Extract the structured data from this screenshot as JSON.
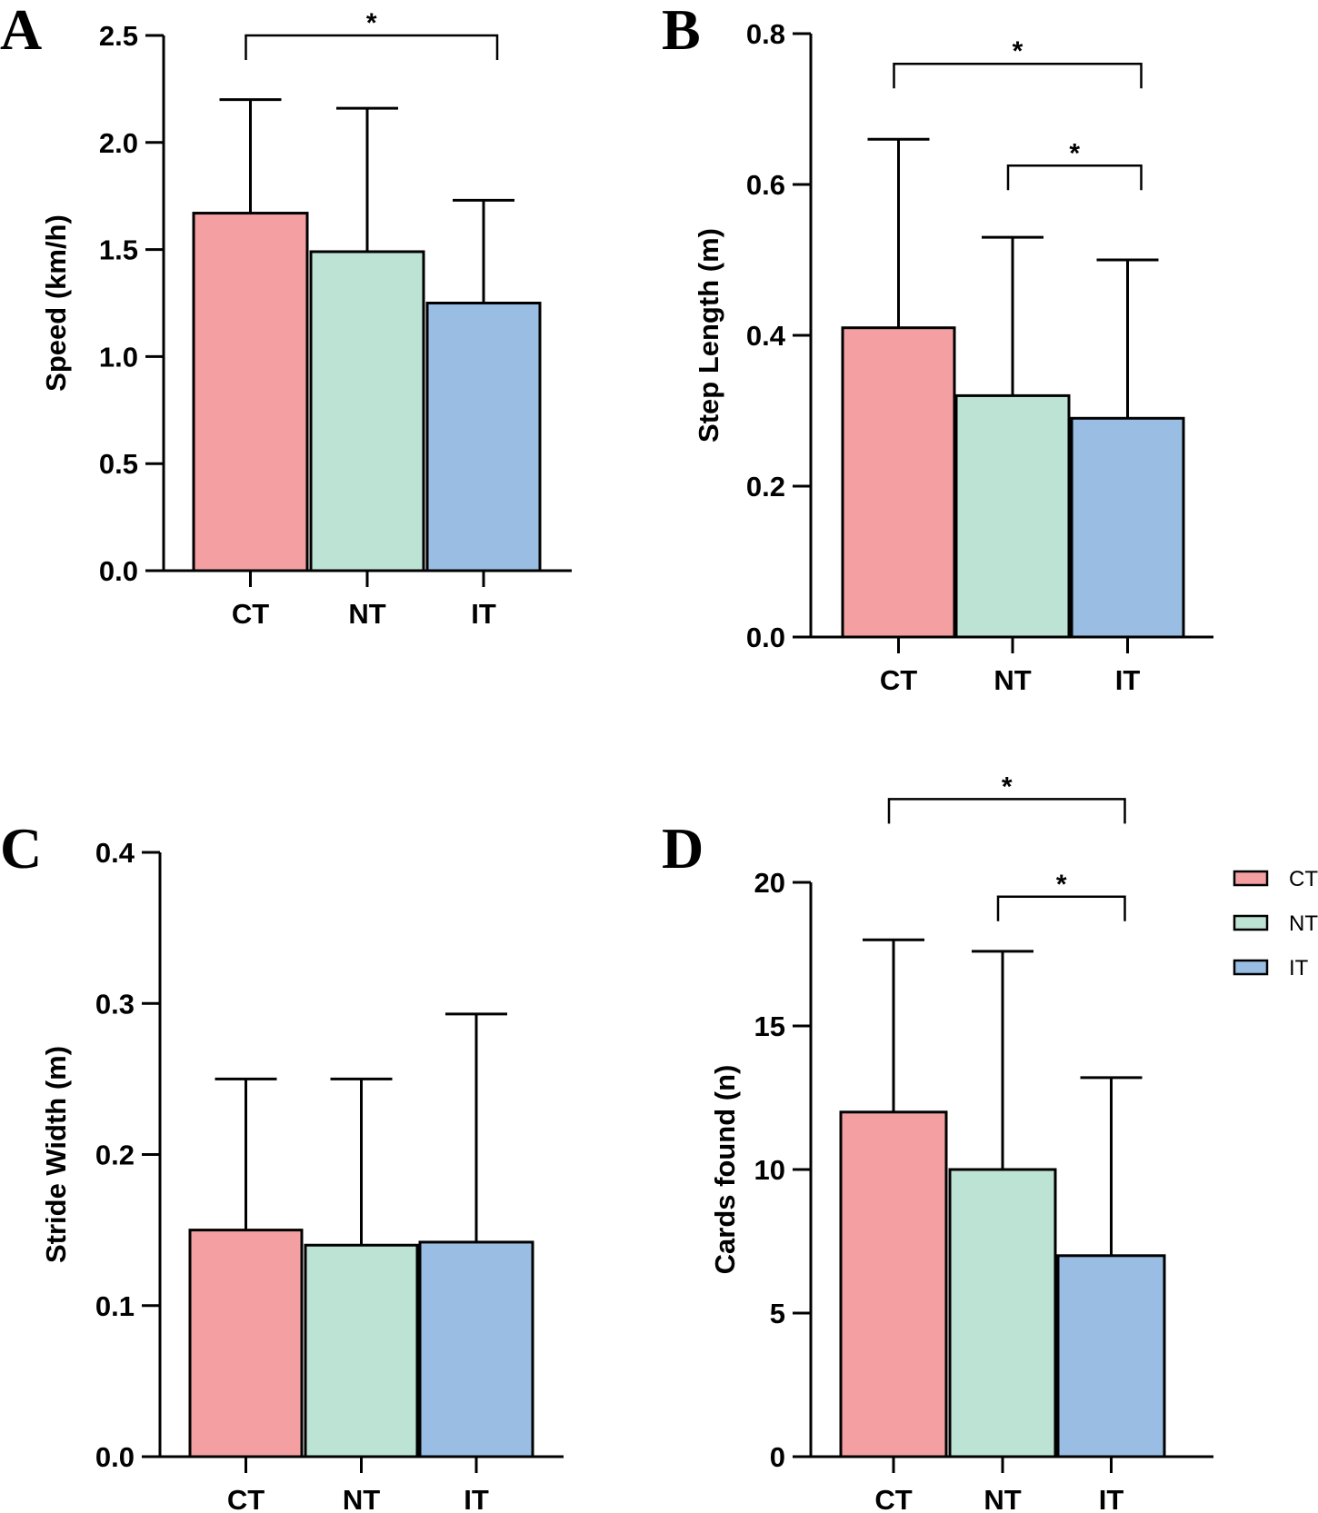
{
  "colors": {
    "CT": "#f4a0a2",
    "NT": "#bde3d5",
    "IT": "#99bde3",
    "stroke": "#000000"
  },
  "legend": [
    {
      "label": "CT",
      "color_key": "CT"
    },
    {
      "label": "NT",
      "color_key": "NT"
    },
    {
      "label": "IT",
      "color_key": "IT"
    }
  ],
  "chart_data": [
    {
      "panel": "A",
      "type": "bar",
      "categories": [
        "CT",
        "NT",
        "IT"
      ],
      "values": [
        1.67,
        1.49,
        1.25
      ],
      "error_upper": [
        2.2,
        2.16,
        1.73
      ],
      "ylabel": "Speed (km/h)",
      "ylim": [
        0,
        2.5
      ],
      "yticks": [
        "0.0",
        "0.5",
        "1.0",
        "1.5",
        "2.0",
        "2.5"
      ],
      "significance": [
        {
          "from": "CT",
          "to": "IT",
          "y": 2.5,
          "label": "*"
        }
      ]
    },
    {
      "panel": "B",
      "type": "bar",
      "categories": [
        "CT",
        "NT",
        "IT"
      ],
      "values": [
        0.41,
        0.32,
        0.29
      ],
      "error_upper": [
        0.66,
        0.53,
        0.5
      ],
      "ylabel": "Step Length (m)",
      "ylim": [
        0,
        0.8
      ],
      "yticks": [
        "0.0",
        "0.2",
        "0.4",
        "0.6",
        "0.8"
      ],
      "significance": [
        {
          "from": "CT",
          "to": "IT",
          "y": 0.76,
          "label": "*"
        },
        {
          "from": "NT",
          "to": "IT",
          "y": 0.625,
          "label": "*"
        }
      ]
    },
    {
      "panel": "C",
      "type": "bar",
      "categories": [
        "CT",
        "NT",
        "IT"
      ],
      "values": [
        0.15,
        0.14,
        0.142
      ],
      "error_upper": [
        0.25,
        0.25,
        0.293
      ],
      "ylabel": "Stride Width (m)",
      "ylim": [
        0,
        0.4
      ],
      "yticks": [
        "0.0",
        "0.1",
        "0.2",
        "0.3",
        "0.4"
      ],
      "significance": []
    },
    {
      "panel": "D",
      "type": "bar",
      "categories": [
        "CT",
        "NT",
        "IT"
      ],
      "values": [
        12,
        10,
        7
      ],
      "error_upper": [
        18,
        17.6,
        13.2
      ],
      "ylabel": "Cards found (n)",
      "ylim": [
        0,
        20
      ],
      "yticks": [
        "0",
        "5",
        "10",
        "15",
        "20"
      ],
      "significance": [
        {
          "from": "CT",
          "to": "IT",
          "y": 22.9,
          "label": "*"
        },
        {
          "from": "NT",
          "to": "IT",
          "y": 19.5,
          "label": "*"
        }
      ]
    }
  ]
}
